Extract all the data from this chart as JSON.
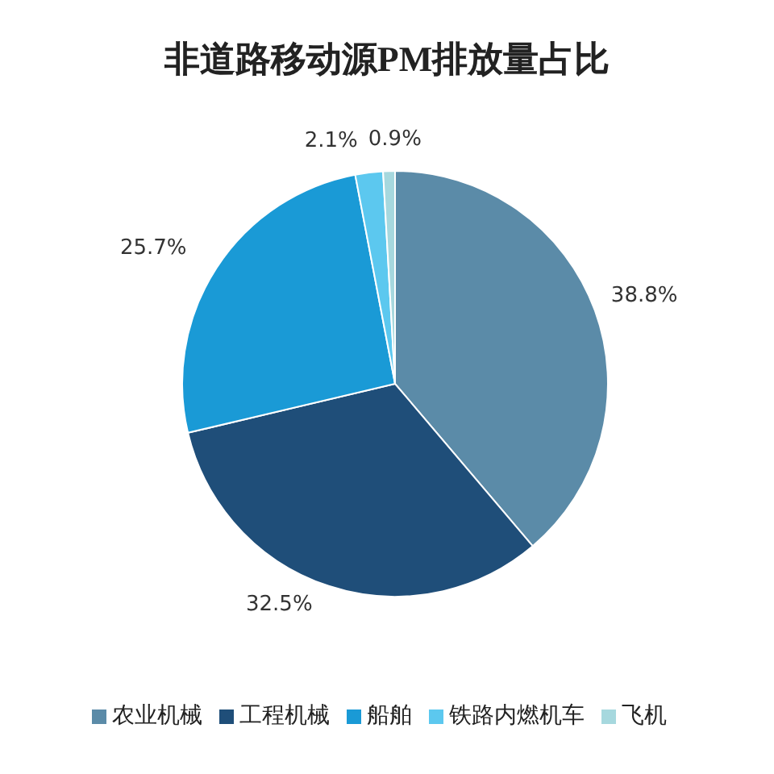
{
  "chart_data": {
    "type": "pie",
    "title": "非道路移动源PM排放量占比",
    "categories": [
      "农业机械",
      "工程机械",
      "船舶",
      "铁路内燃机车",
      "飞机"
    ],
    "values": [
      38.8,
      32.5,
      25.7,
      2.1,
      0.9
    ],
    "colors": [
      "#5b8ba8",
      "#1f4e79",
      "#1a9ad6",
      "#5cc8ef",
      "#a6d8de"
    ],
    "value_labels": [
      "38.8%",
      "32.5%",
      "25.7%",
      "2.1%",
      "0.9%"
    ],
    "legend": "bottom"
  }
}
